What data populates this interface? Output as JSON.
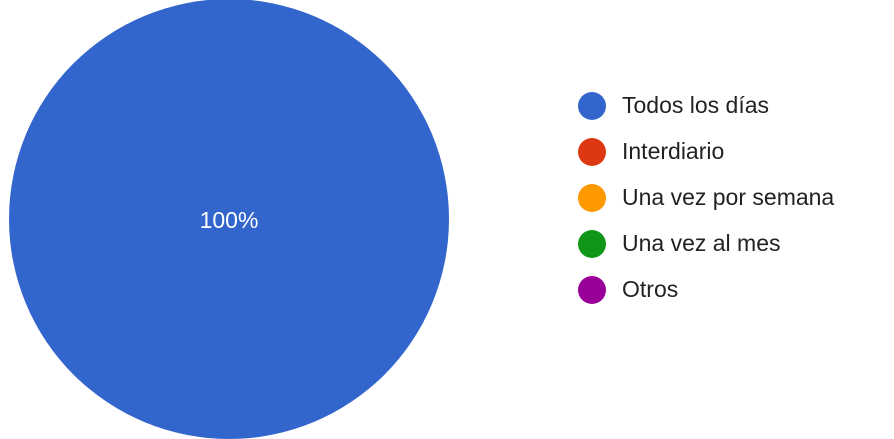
{
  "chart_data": {
    "type": "pie",
    "categories": [
      "Todos los días",
      "Interdiario",
      "Una vez por semana",
      "Una vez al mes",
      "Otros"
    ],
    "values": [
      100,
      0,
      0,
      0,
      0
    ],
    "data_labels": [
      "100%"
    ],
    "colors": [
      "#3366cc",
      "#dc3912",
      "#ff9900",
      "#109618",
      "#990099"
    ],
    "label_color": "#ffffff",
    "legend_position": "right",
    "title": ""
  }
}
